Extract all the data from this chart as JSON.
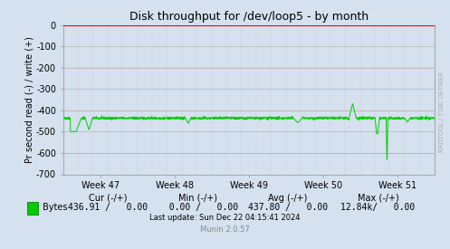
{
  "title": "Disk throughput for /dev/loop5 - by month",
  "ylabel": "Pr second read (-) / write (+)",
  "xlabel_ticks": [
    "Week 47",
    "Week 48",
    "Week 49",
    "Week 50",
    "Week 51"
  ],
  "ylim": [
    -700,
    0
  ],
  "yticks": [
    0,
    -100,
    -200,
    -300,
    -400,
    -500,
    -600,
    -700
  ],
  "background_color": "#d5e1ef",
  "plot_bg_color": "#d5e1ef",
  "grid_color_major": "#aaaaaa",
  "line_color": "#00cc00",
  "line_color_top": "#ff0000",
  "border_color": "#aaaaaa",
  "title_color": "#000000",
  "legend_label": "Bytes",
  "legend_color": "#00cc00",
  "cur_label": "Cur (-/+)",
  "min_label": "Min (-/+)",
  "avg_label": "Avg (-/+)",
  "max_label": "Max (-/+)",
  "cur_val": "436.91 /   0.00",
  "min_val": "  0.00 /   0.00",
  "avg_val": "437.80 /   0.00",
  "max_val": "12.84k/   0.00",
  "last_update": "Last update: Sun Dec 22 04:15:41 2024",
  "munin_version": "Munin 2.0.57",
  "rrdtool_label": "RRDTOOL / TOBI OETIKER",
  "figsize": [
    4.97,
    2.75
  ],
  "dpi": 100,
  "baseline_value": -437
}
